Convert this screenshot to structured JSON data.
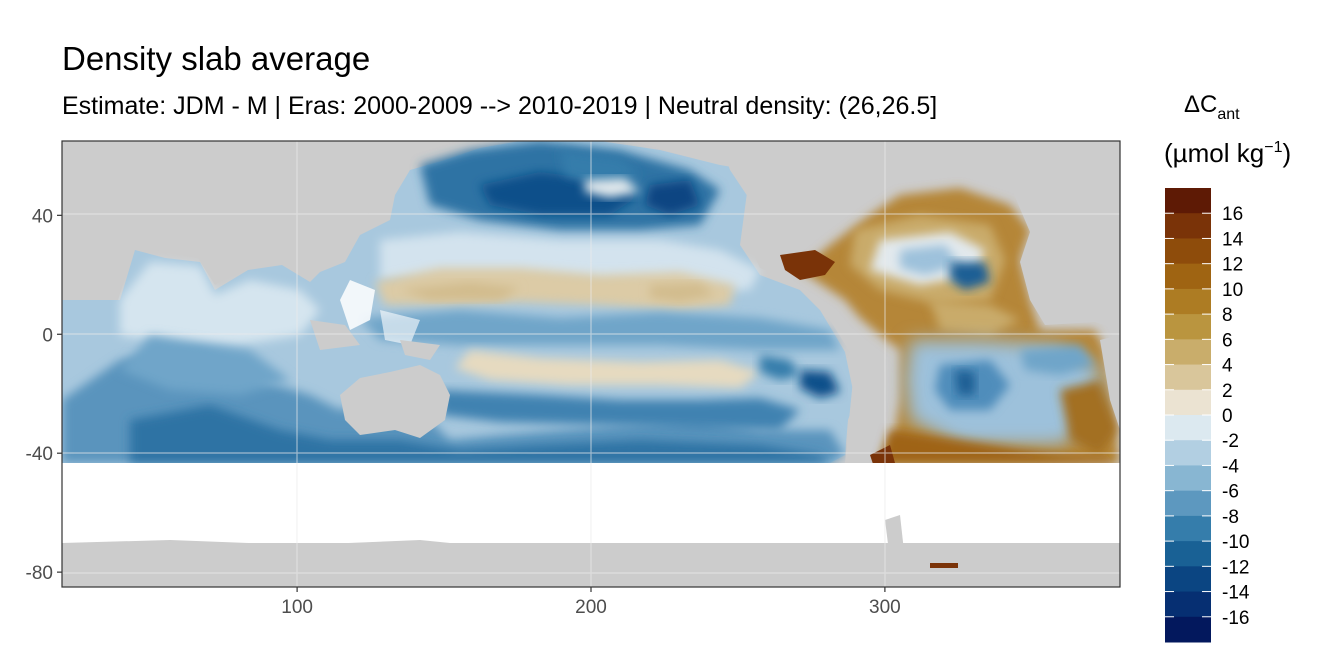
{
  "chart_data": {
    "type": "heatmap",
    "title": "Density slab average",
    "subtitle": "Estimate: JDM - M | Eras: 2000-2009 --> 2010-2019 | Neutral density: (26,26.5]",
    "xlabel": "",
    "ylabel": "",
    "xlim": [
      20,
      380
    ],
    "ylim": [
      -85,
      65
    ],
    "x_ticks": [
      100,
      200,
      300
    ],
    "y_ticks": [
      40,
      0,
      -40,
      -80
    ],
    "grid": true,
    "legend": {
      "title_main": "ΔC",
      "title_sub": "ant",
      "units_prefix": "(µmol kg",
      "units_sup": "−1",
      "units_suffix": ")",
      "position": "right",
      "labels": [
        "16",
        "14",
        "12",
        "10",
        "8",
        "6",
        "4",
        "2",
        "0",
        "-2",
        "-4",
        "-6",
        "-8",
        "-10",
        "-12",
        "-14",
        "-16"
      ],
      "colors": [
        "#5e1a05",
        "#7a3308",
        "#8e4c0b",
        "#9f6412",
        "#ad7c23",
        "#ba953f",
        "#c9ad6b",
        "#d9c69b",
        "#ebe3d2",
        "#dce9f0",
        "#b2cfe2",
        "#88b6d2",
        "#5d98bf",
        "#357dab",
        "#196195",
        "#0b4582",
        "#062f72",
        "#03185d"
      ]
    },
    "regions_note_values_c_ant": {
      "north_pacific_subpolar": -10,
      "north_pacific_subtropical": 2,
      "equatorial_pacific": -4,
      "south_pacific": -6,
      "indian_ocean": -6,
      "north_atlantic_subtropical": 10,
      "north_atlantic_gyre_core": -8,
      "south_atlantic": -6,
      "gulf_of_mexico": 16,
      "southwest_atlantic_shelf": 16
    }
  }
}
